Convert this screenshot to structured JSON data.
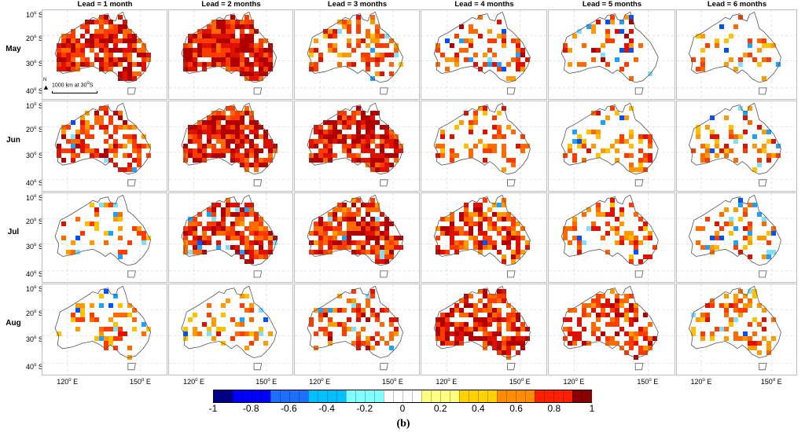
{
  "chart_data": {
    "type": "heatmap",
    "description_of_grid": "6 lead times x 4 start months of spatial skill maps over Australia",
    "columns": [
      "Lead = 1 month",
      "Lead = 2 months",
      "Lead = 3 months",
      "Lead = 4 months",
      "Lead = 5 months",
      "Lead = 6 months"
    ],
    "rows": [
      "May",
      "Jun",
      "Jul",
      "Aug"
    ],
    "lat_ticks": [
      "10",
      "20",
      "30",
      "40"
    ],
    "lat_suffix": "S",
    "lon_ticks": [
      "120",
      "150"
    ],
    "lon_suffix": "E",
    "scale_label": "1000 km at 30",
    "scale_suffix": "S",
    "north_label": "N",
    "colorbar": {
      "range": [
        -1,
        1
      ],
      "ticks": [
        "-1",
        "-0.8",
        "-0.6",
        "-0.4",
        "-0.2",
        "0",
        "0.2",
        "0.4",
        "0.6",
        "0.8",
        "1"
      ],
      "colors": [
        "#00008b",
        "#0000ff",
        "#1e6fff",
        "#00bfff",
        "#7fffff",
        "#ffffff",
        "#ffff80",
        "#ffd000",
        "#ff8c00",
        "#ff2000",
        "#8b0000"
      ]
    },
    "panel_coverage": [
      [
        0.8,
        0.92,
        0.38,
        0.28,
        0.22,
        0.14
      ],
      [
        0.55,
        0.8,
        0.82,
        0.32,
        0.24,
        0.26
      ],
      [
        0.18,
        0.66,
        0.7,
        0.62,
        0.34,
        0.22
      ],
      [
        0.22,
        0.22,
        0.4,
        0.72,
        0.55,
        0.28
      ]
    ],
    "panel_intensity": [
      [
        0.75,
        0.8,
        0.55,
        0.6,
        0.6,
        0.45
      ],
      [
        0.65,
        0.75,
        0.75,
        0.5,
        0.45,
        0.5
      ],
      [
        0.45,
        0.7,
        0.72,
        0.65,
        0.55,
        0.5
      ],
      [
        0.45,
        0.45,
        0.6,
        0.75,
        0.65,
        0.5
      ]
    ],
    "panel_negative": [
      [
        0.0,
        0.0,
        0.02,
        0.04,
        0.05,
        0.02
      ],
      [
        0.02,
        0.0,
        0.0,
        0.0,
        0.03,
        0.08
      ],
      [
        0.05,
        0.05,
        0.03,
        0.01,
        0.02,
        0.06
      ],
      [
        0.03,
        0.03,
        0.04,
        0.0,
        0.0,
        0.02
      ]
    ]
  },
  "figure_label": "(b)"
}
